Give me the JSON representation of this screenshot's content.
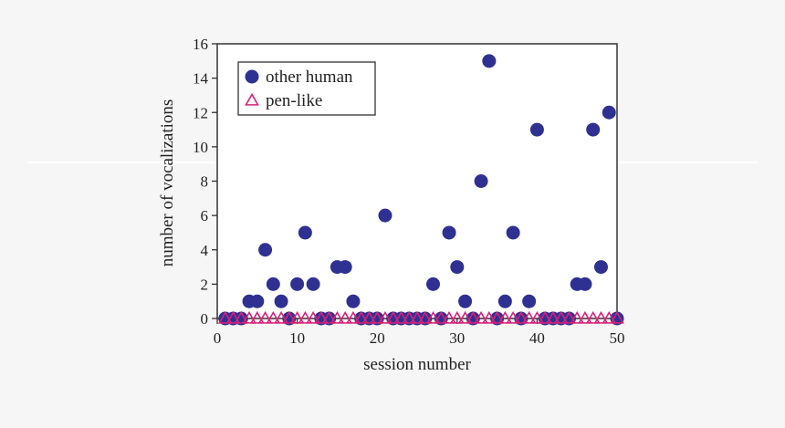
{
  "chart_data": {
    "type": "scatter",
    "xlabel": "session number",
    "ylabel": "number of vocalizations",
    "xlim": [
      0,
      50
    ],
    "ylim": [
      0,
      16
    ],
    "xticks": [
      0,
      10,
      20,
      30,
      40,
      50
    ],
    "yticks": [
      0,
      2,
      4,
      6,
      8,
      10,
      12,
      14,
      16
    ],
    "grid": false,
    "legend_position": "top-left",
    "series": [
      {
        "name": "other human",
        "marker": "filled-circle",
        "color": "#2e3192",
        "x": [
          1,
          2,
          3,
          4,
          5,
          6,
          7,
          8,
          9,
          10,
          11,
          12,
          13,
          14,
          15,
          16,
          17,
          18,
          19,
          20,
          21,
          22,
          23,
          24,
          25,
          26,
          27,
          28,
          29,
          30,
          31,
          32,
          33,
          34,
          35,
          36,
          37,
          38,
          39,
          40,
          41,
          42,
          43,
          44,
          45,
          46,
          47,
          48,
          49,
          50
        ],
        "y": [
          0,
          0,
          0,
          1,
          1,
          4,
          2,
          1,
          0,
          2,
          5,
          2,
          0,
          0,
          3,
          3,
          1,
          0,
          0,
          0,
          6,
          0,
          0,
          0,
          0,
          0,
          2,
          0,
          5,
          3,
          1,
          0,
          8,
          15,
          0,
          1,
          5,
          0,
          1,
          11,
          0,
          0,
          0,
          0,
          2,
          2,
          11,
          3,
          12,
          0
        ]
      },
      {
        "name": "pen-like",
        "marker": "open-triangle",
        "color": "#d6217a",
        "x": [
          1,
          2,
          3,
          4,
          5,
          6,
          7,
          8,
          9,
          10,
          11,
          12,
          13,
          14,
          15,
          16,
          17,
          18,
          19,
          20,
          21,
          22,
          23,
          24,
          25,
          26,
          27,
          28,
          29,
          30,
          31,
          32,
          33,
          34,
          35,
          36,
          37,
          38,
          39,
          40,
          41,
          42,
          43,
          44,
          45,
          46,
          47,
          48,
          49,
          50
        ],
        "y": [
          0,
          0,
          0,
          0,
          0,
          0,
          0,
          0,
          0,
          0,
          0,
          0,
          0,
          0,
          0,
          0,
          0,
          0,
          0,
          0,
          0,
          0,
          0,
          0,
          0,
          0,
          0,
          0,
          0,
          0,
          0,
          0,
          0,
          0,
          0,
          0,
          0,
          0,
          0,
          0,
          0,
          0,
          0,
          0,
          0,
          0,
          0,
          0,
          0,
          0
        ]
      }
    ]
  }
}
